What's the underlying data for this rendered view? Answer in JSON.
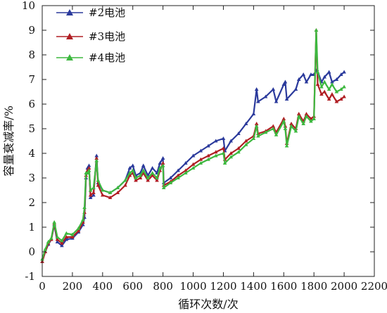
{
  "chart_data": {
    "type": "line",
    "xlabel": "循环次数/次",
    "ylabel": "容量衰减率/%",
    "xlim": [
      0,
      2200
    ],
    "ylim": [
      -1,
      10
    ],
    "xticks": [
      0,
      200,
      400,
      600,
      800,
      1000,
      1200,
      1400,
      1600,
      1800,
      2000,
      2200
    ],
    "yticks": [
      -1,
      0,
      1,
      2,
      3,
      4,
      5,
      6,
      7,
      8,
      9,
      10
    ],
    "grid": false,
    "legend_position": "top-left",
    "series": [
      {
        "name": "#2电池",
        "color": "#2b3a9c",
        "marker": "triangle",
        "points": [
          [
            0,
            -0.4
          ],
          [
            20,
            0.0
          ],
          [
            40,
            0.3
          ],
          [
            60,
            0.5
          ],
          [
            80,
            1.1
          ],
          [
            100,
            0.4
          ],
          [
            130,
            0.25
          ],
          [
            160,
            0.5
          ],
          [
            200,
            0.55
          ],
          [
            240,
            0.8
          ],
          [
            270,
            1.1
          ],
          [
            280,
            1.4
          ],
          [
            290,
            3.0
          ],
          [
            300,
            3.4
          ],
          [
            310,
            3.5
          ],
          [
            320,
            2.2
          ],
          [
            340,
            2.3
          ],
          [
            360,
            3.9
          ],
          [
            370,
            2.8
          ],
          [
            400,
            2.5
          ],
          [
            450,
            2.4
          ],
          [
            500,
            2.6
          ],
          [
            550,
            2.9
          ],
          [
            580,
            3.4
          ],
          [
            600,
            3.5
          ],
          [
            620,
            3.1
          ],
          [
            650,
            3.2
          ],
          [
            670,
            3.5
          ],
          [
            700,
            3.1
          ],
          [
            730,
            3.4
          ],
          [
            760,
            3.2
          ],
          [
            780,
            3.6
          ],
          [
            800,
            3.8
          ],
          [
            805,
            2.8
          ],
          [
            850,
            3.0
          ],
          [
            900,
            3.3
          ],
          [
            950,
            3.6
          ],
          [
            1000,
            3.9
          ],
          [
            1050,
            4.1
          ],
          [
            1100,
            4.3
          ],
          [
            1150,
            4.5
          ],
          [
            1200,
            4.6
          ],
          [
            1210,
            4.1
          ],
          [
            1250,
            4.5
          ],
          [
            1300,
            4.8
          ],
          [
            1350,
            5.2
          ],
          [
            1400,
            5.6
          ],
          [
            1420,
            6.6
          ],
          [
            1430,
            6.1
          ],
          [
            1480,
            6.3
          ],
          [
            1530,
            6.6
          ],
          [
            1550,
            6.1
          ],
          [
            1600,
            6.8
          ],
          [
            1610,
            6.9
          ],
          [
            1620,
            6.2
          ],
          [
            1680,
            6.6
          ],
          [
            1700,
            7.0
          ],
          [
            1730,
            7.2
          ],
          [
            1750,
            6.9
          ],
          [
            1780,
            7.2
          ],
          [
            1800,
            7.2
          ],
          [
            1820,
            7.4
          ],
          [
            1850,
            6.9
          ],
          [
            1870,
            7.1
          ],
          [
            1900,
            7.3
          ],
          [
            1920,
            6.9
          ],
          [
            1950,
            7.0
          ],
          [
            1980,
            7.2
          ],
          [
            2000,
            7.3
          ]
        ]
      },
      {
        "name": "#3电池",
        "color": "#b01e23",
        "marker": "triangle",
        "points": [
          [
            0,
            -0.4
          ],
          [
            20,
            0.0
          ],
          [
            40,
            0.35
          ],
          [
            60,
            0.5
          ],
          [
            80,
            1.15
          ],
          [
            100,
            0.5
          ],
          [
            130,
            0.35
          ],
          [
            160,
            0.6
          ],
          [
            200,
            0.6
          ],
          [
            240,
            0.85
          ],
          [
            270,
            1.2
          ],
          [
            280,
            1.6
          ],
          [
            290,
            3.1
          ],
          [
            300,
            3.3
          ],
          [
            310,
            3.4
          ],
          [
            320,
            2.3
          ],
          [
            340,
            2.4
          ],
          [
            360,
            3.8
          ],
          [
            370,
            2.7
          ],
          [
            400,
            2.3
          ],
          [
            450,
            2.2
          ],
          [
            500,
            2.4
          ],
          [
            550,
            2.7
          ],
          [
            580,
            3.1
          ],
          [
            600,
            3.2
          ],
          [
            620,
            2.9
          ],
          [
            650,
            3.0
          ],
          [
            670,
            3.2
          ],
          [
            700,
            2.9
          ],
          [
            730,
            3.1
          ],
          [
            760,
            2.9
          ],
          [
            780,
            3.3
          ],
          [
            800,
            3.6
          ],
          [
            805,
            2.7
          ],
          [
            850,
            2.85
          ],
          [
            900,
            3.1
          ],
          [
            950,
            3.3
          ],
          [
            1000,
            3.55
          ],
          [
            1050,
            3.75
          ],
          [
            1100,
            3.9
          ],
          [
            1150,
            4.05
          ],
          [
            1200,
            4.2
          ],
          [
            1210,
            3.75
          ],
          [
            1250,
            4.0
          ],
          [
            1300,
            4.2
          ],
          [
            1350,
            4.5
          ],
          [
            1400,
            4.7
          ],
          [
            1420,
            5.2
          ],
          [
            1430,
            4.8
          ],
          [
            1480,
            4.9
          ],
          [
            1530,
            5.1
          ],
          [
            1550,
            4.85
          ],
          [
            1600,
            5.4
          ],
          [
            1610,
            5.1
          ],
          [
            1620,
            4.4
          ],
          [
            1650,
            5.2
          ],
          [
            1680,
            5.0
          ],
          [
            1700,
            5.6
          ],
          [
            1730,
            5.3
          ],
          [
            1750,
            5.6
          ],
          [
            1780,
            5.4
          ],
          [
            1800,
            5.5
          ],
          [
            1815,
            9.0
          ],
          [
            1825,
            6.8
          ],
          [
            1850,
            6.4
          ],
          [
            1870,
            6.5
          ],
          [
            1900,
            6.2
          ],
          [
            1920,
            6.4
          ],
          [
            1950,
            6.1
          ],
          [
            1980,
            6.2
          ],
          [
            2000,
            6.3
          ]
        ]
      },
      {
        "name": "#4电池",
        "color": "#3db83f",
        "marker": "triangle",
        "points": [
          [
            0,
            -0.3
          ],
          [
            20,
            0.1
          ],
          [
            40,
            0.4
          ],
          [
            60,
            0.55
          ],
          [
            80,
            1.2
          ],
          [
            100,
            0.6
          ],
          [
            130,
            0.45
          ],
          [
            160,
            0.75
          ],
          [
            200,
            0.7
          ],
          [
            240,
            0.95
          ],
          [
            270,
            1.3
          ],
          [
            280,
            1.8
          ],
          [
            290,
            3.2
          ],
          [
            300,
            3.2
          ],
          [
            310,
            3.3
          ],
          [
            320,
            2.5
          ],
          [
            340,
            2.6
          ],
          [
            360,
            3.7
          ],
          [
            370,
            2.9
          ],
          [
            400,
            2.5
          ],
          [
            450,
            2.4
          ],
          [
            500,
            2.6
          ],
          [
            550,
            2.9
          ],
          [
            580,
            3.2
          ],
          [
            600,
            3.3
          ],
          [
            620,
            3.0
          ],
          [
            650,
            3.1
          ],
          [
            670,
            3.3
          ],
          [
            700,
            3.0
          ],
          [
            730,
            3.2
          ],
          [
            760,
            3.0
          ],
          [
            780,
            3.4
          ],
          [
            800,
            3.5
          ],
          [
            805,
            2.6
          ],
          [
            850,
            2.8
          ],
          [
            900,
            3.0
          ],
          [
            950,
            3.2
          ],
          [
            1000,
            3.4
          ],
          [
            1050,
            3.6
          ],
          [
            1100,
            3.75
          ],
          [
            1150,
            3.9
          ],
          [
            1200,
            4.0
          ],
          [
            1210,
            3.6
          ],
          [
            1250,
            3.85
          ],
          [
            1300,
            4.05
          ],
          [
            1350,
            4.35
          ],
          [
            1400,
            4.6
          ],
          [
            1420,
            5.1
          ],
          [
            1430,
            4.7
          ],
          [
            1480,
            4.85
          ],
          [
            1530,
            5.0
          ],
          [
            1550,
            4.75
          ],
          [
            1600,
            5.3
          ],
          [
            1610,
            5.0
          ],
          [
            1620,
            4.3
          ],
          [
            1650,
            5.1
          ],
          [
            1680,
            4.9
          ],
          [
            1700,
            5.5
          ],
          [
            1730,
            5.2
          ],
          [
            1750,
            5.5
          ],
          [
            1780,
            5.3
          ],
          [
            1800,
            5.4
          ],
          [
            1815,
            9.0
          ],
          [
            1825,
            7.3
          ],
          [
            1850,
            6.7
          ],
          [
            1870,
            6.9
          ],
          [
            1900,
            6.6
          ],
          [
            1920,
            6.8
          ],
          [
            1950,
            6.5
          ],
          [
            1980,
            6.6
          ],
          [
            2000,
            6.7
          ]
        ]
      }
    ]
  }
}
